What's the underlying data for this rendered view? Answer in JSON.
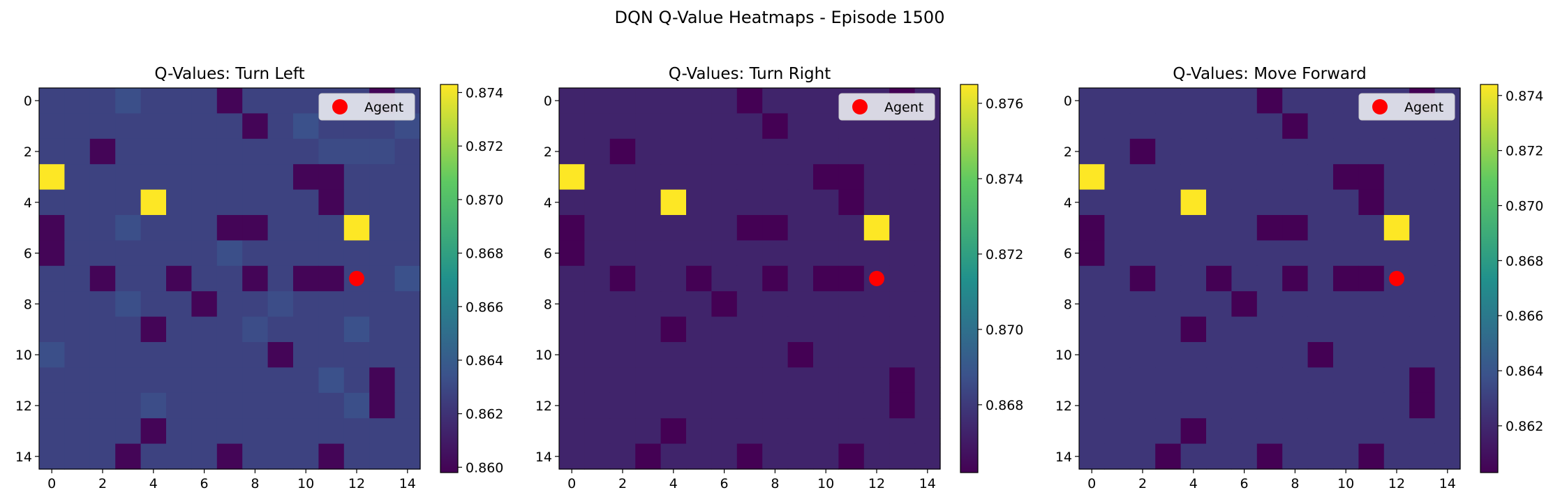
{
  "figure": {
    "title": "DQN Q-Value Heatmaps - Episode 1500"
  },
  "colors": {
    "viridis_0": "#440154",
    "viridis_25": "#3b528b",
    "viridis_50": "#21918c",
    "viridis_75": "#5ec962",
    "viridis_100": "#fde725",
    "agent": "#ff0000"
  },
  "chart_data": [
    {
      "type": "heatmap",
      "title": "Q-Values: Turn Left",
      "grid_size": 15,
      "x_ticks": [
        "0",
        "2",
        "4",
        "6",
        "8",
        "10",
        "12",
        "14"
      ],
      "y_ticks": [
        "0",
        "2",
        "4",
        "6",
        "8",
        "10",
        "12",
        "14"
      ],
      "colorbar": {
        "min": 0.8598,
        "max": 0.8743,
        "ticks": [
          "0.860",
          "0.862",
          "0.864",
          "0.866",
          "0.868",
          "0.870",
          "0.872",
          "0.874"
        ]
      },
      "base_value": 0.8627,
      "special_cells": [
        {
          "row": 0,
          "col": 7,
          "value": 0.86
        },
        {
          "row": 0,
          "col": 13,
          "value": 0.86
        },
        {
          "row": 0,
          "col": 3,
          "value": 0.8633
        },
        {
          "row": 1,
          "col": 8,
          "value": 0.86
        },
        {
          "row": 1,
          "col": 10,
          "value": 0.8634
        },
        {
          "row": 1,
          "col": 14,
          "value": 0.8632
        },
        {
          "row": 2,
          "col": 2,
          "value": 0.86
        },
        {
          "row": 2,
          "col": 11,
          "value": 0.8631
        },
        {
          "row": 2,
          "col": 12,
          "value": 0.8631
        },
        {
          "row": 2,
          "col": 13,
          "value": 0.8631
        },
        {
          "row": 3,
          "col": 0,
          "value": 0.8743
        },
        {
          "row": 3,
          "col": 10,
          "value": 0.86
        },
        {
          "row": 3,
          "col": 11,
          "value": 0.86
        },
        {
          "row": 4,
          "col": 4,
          "value": 0.8743
        },
        {
          "row": 4,
          "col": 11,
          "value": 0.86
        },
        {
          "row": 5,
          "col": 0,
          "value": 0.86
        },
        {
          "row": 5,
          "col": 7,
          "value": 0.86
        },
        {
          "row": 5,
          "col": 8,
          "value": 0.86
        },
        {
          "row": 5,
          "col": 12,
          "value": 0.8743
        },
        {
          "row": 5,
          "col": 3,
          "value": 0.8633
        },
        {
          "row": 6,
          "col": 0,
          "value": 0.86
        },
        {
          "row": 6,
          "col": 7,
          "value": 0.8633
        },
        {
          "row": 7,
          "col": 2,
          "value": 0.86
        },
        {
          "row": 7,
          "col": 5,
          "value": 0.86
        },
        {
          "row": 7,
          "col": 8,
          "value": 0.86
        },
        {
          "row": 7,
          "col": 10,
          "value": 0.86
        },
        {
          "row": 7,
          "col": 11,
          "value": 0.86
        },
        {
          "row": 7,
          "col": 14,
          "value": 0.8634
        },
        {
          "row": 8,
          "col": 6,
          "value": 0.86
        },
        {
          "row": 8,
          "col": 3,
          "value": 0.8633
        },
        {
          "row": 8,
          "col": 9,
          "value": 0.8632
        },
        {
          "row": 9,
          "col": 4,
          "value": 0.86
        },
        {
          "row": 9,
          "col": 8,
          "value": 0.8632
        },
        {
          "row": 9,
          "col": 12,
          "value": 0.8634
        },
        {
          "row": 10,
          "col": 9,
          "value": 0.86
        },
        {
          "row": 10,
          "col": 0,
          "value": 0.8633
        },
        {
          "row": 11,
          "col": 13,
          "value": 0.86
        },
        {
          "row": 11,
          "col": 11,
          "value": 0.8634
        },
        {
          "row": 12,
          "col": 13,
          "value": 0.86
        },
        {
          "row": 12,
          "col": 4,
          "value": 0.8632
        },
        {
          "row": 12,
          "col": 12,
          "value": 0.8633
        },
        {
          "row": 13,
          "col": 4,
          "value": 0.86
        },
        {
          "row": 14,
          "col": 3,
          "value": 0.86
        },
        {
          "row": 14,
          "col": 7,
          "value": 0.86
        },
        {
          "row": 14,
          "col": 11,
          "value": 0.86
        }
      ],
      "agent": {
        "x": 12,
        "y": 7
      },
      "legend": {
        "label": "Agent",
        "position": "upper-right"
      }
    },
    {
      "type": "heatmap",
      "title": "Q-Values: Turn Right",
      "grid_size": 15,
      "x_ticks": [
        "0",
        "2",
        "4",
        "6",
        "8",
        "10",
        "12",
        "14"
      ],
      "y_ticks": [
        "0",
        "2",
        "4",
        "6",
        "8",
        "10",
        "12",
        "14"
      ],
      "colorbar": {
        "min": 0.8662,
        "max": 0.8765,
        "ticks": [
          "0.868",
          "0.870",
          "0.872",
          "0.874",
          "0.876"
        ]
      },
      "base_value": 0.8673,
      "special_cells": [
        {
          "row": 0,
          "col": 7,
          "value": 0.8662
        },
        {
          "row": 0,
          "col": 13,
          "value": 0.8662
        },
        {
          "row": 1,
          "col": 8,
          "value": 0.8662
        },
        {
          "row": 2,
          "col": 2,
          "value": 0.8662
        },
        {
          "row": 3,
          "col": 0,
          "value": 0.8765
        },
        {
          "row": 3,
          "col": 10,
          "value": 0.8662
        },
        {
          "row": 3,
          "col": 11,
          "value": 0.8662
        },
        {
          "row": 4,
          "col": 4,
          "value": 0.8765
        },
        {
          "row": 4,
          "col": 11,
          "value": 0.8662
        },
        {
          "row": 5,
          "col": 0,
          "value": 0.8662
        },
        {
          "row": 5,
          "col": 7,
          "value": 0.8662
        },
        {
          "row": 5,
          "col": 8,
          "value": 0.8662
        },
        {
          "row": 5,
          "col": 12,
          "value": 0.8765
        },
        {
          "row": 6,
          "col": 0,
          "value": 0.8662
        },
        {
          "row": 7,
          "col": 2,
          "value": 0.8662
        },
        {
          "row": 7,
          "col": 5,
          "value": 0.8662
        },
        {
          "row": 7,
          "col": 8,
          "value": 0.8662
        },
        {
          "row": 7,
          "col": 10,
          "value": 0.8662
        },
        {
          "row": 7,
          "col": 11,
          "value": 0.8662
        },
        {
          "row": 8,
          "col": 6,
          "value": 0.8662
        },
        {
          "row": 9,
          "col": 4,
          "value": 0.8662
        },
        {
          "row": 10,
          "col": 9,
          "value": 0.8662
        },
        {
          "row": 11,
          "col": 13,
          "value": 0.8662
        },
        {
          "row": 12,
          "col": 13,
          "value": 0.8662
        },
        {
          "row": 13,
          "col": 4,
          "value": 0.8662
        },
        {
          "row": 14,
          "col": 3,
          "value": 0.8662
        },
        {
          "row": 14,
          "col": 7,
          "value": 0.8662
        },
        {
          "row": 14,
          "col": 11,
          "value": 0.8662
        }
      ],
      "agent": {
        "x": 12,
        "y": 7
      },
      "legend": {
        "label": "Agent",
        "position": "upper-right"
      }
    },
    {
      "type": "heatmap",
      "title": "Q-Values: Move Forward",
      "grid_size": 15,
      "x_ticks": [
        "0",
        "2",
        "4",
        "6",
        "8",
        "10",
        "12",
        "14"
      ],
      "y_ticks": [
        "0",
        "2",
        "4",
        "6",
        "8",
        "10",
        "12",
        "14"
      ],
      "colorbar": {
        "min": 0.8603,
        "max": 0.8744,
        "ticks": [
          "0.862",
          "0.864",
          "0.866",
          "0.868",
          "0.870",
          "0.872",
          "0.874"
        ]
      },
      "base_value": 0.8626,
      "special_cells": [
        {
          "row": 0,
          "col": 7,
          "value": 0.8603
        },
        {
          "row": 0,
          "col": 13,
          "value": 0.8603
        },
        {
          "row": 1,
          "col": 8,
          "value": 0.8603
        },
        {
          "row": 2,
          "col": 2,
          "value": 0.8603
        },
        {
          "row": 3,
          "col": 0,
          "value": 0.8744
        },
        {
          "row": 3,
          "col": 10,
          "value": 0.8603
        },
        {
          "row": 3,
          "col": 11,
          "value": 0.8603
        },
        {
          "row": 4,
          "col": 4,
          "value": 0.8744
        },
        {
          "row": 4,
          "col": 11,
          "value": 0.8603
        },
        {
          "row": 5,
          "col": 0,
          "value": 0.8603
        },
        {
          "row": 5,
          "col": 7,
          "value": 0.8603
        },
        {
          "row": 5,
          "col": 8,
          "value": 0.8603
        },
        {
          "row": 5,
          "col": 12,
          "value": 0.8744
        },
        {
          "row": 6,
          "col": 0,
          "value": 0.8603
        },
        {
          "row": 7,
          "col": 2,
          "value": 0.8603
        },
        {
          "row": 7,
          "col": 5,
          "value": 0.8603
        },
        {
          "row": 7,
          "col": 8,
          "value": 0.8603
        },
        {
          "row": 7,
          "col": 10,
          "value": 0.8603
        },
        {
          "row": 7,
          "col": 11,
          "value": 0.8603
        },
        {
          "row": 8,
          "col": 6,
          "value": 0.8603
        },
        {
          "row": 9,
          "col": 4,
          "value": 0.8603
        },
        {
          "row": 10,
          "col": 9,
          "value": 0.8603
        },
        {
          "row": 11,
          "col": 13,
          "value": 0.8603
        },
        {
          "row": 12,
          "col": 13,
          "value": 0.8603
        },
        {
          "row": 13,
          "col": 4,
          "value": 0.8603
        },
        {
          "row": 14,
          "col": 3,
          "value": 0.8603
        },
        {
          "row": 14,
          "col": 7,
          "value": 0.8603
        },
        {
          "row": 14,
          "col": 11,
          "value": 0.8603
        }
      ],
      "agent": {
        "x": 12,
        "y": 7
      },
      "legend": {
        "label": "Agent",
        "position": "upper-right"
      }
    }
  ]
}
